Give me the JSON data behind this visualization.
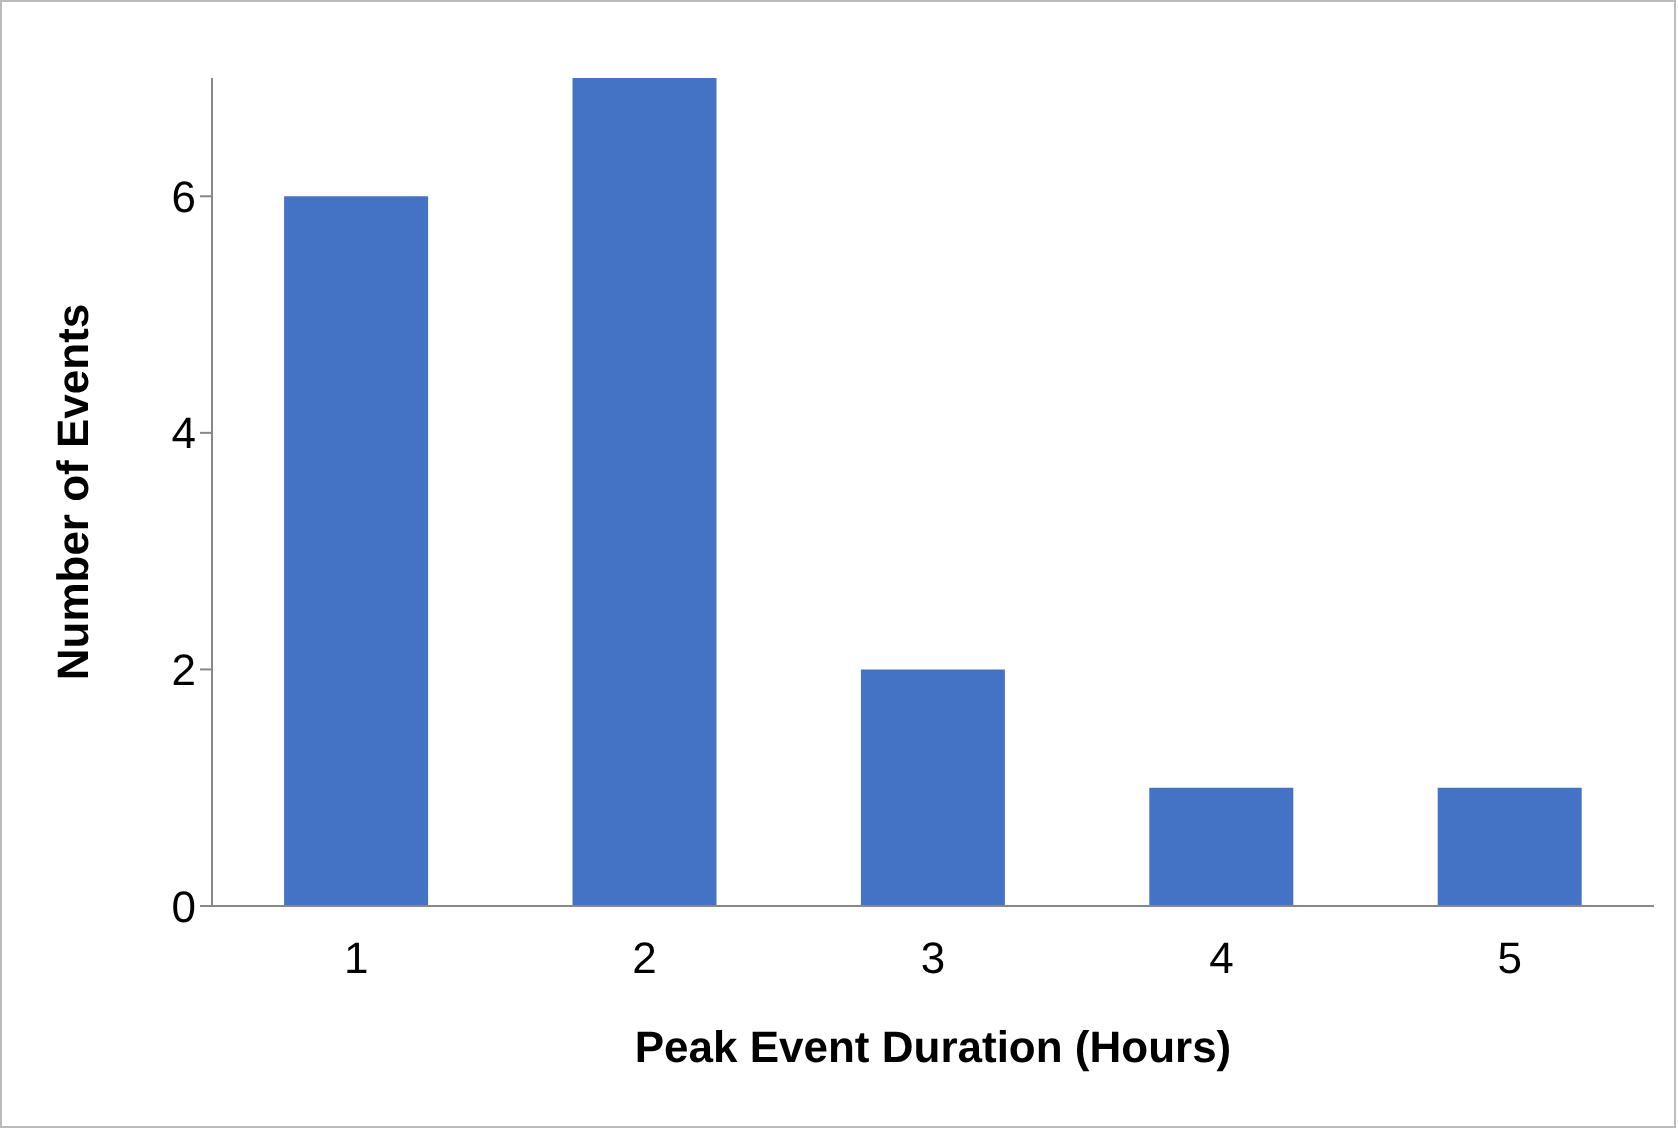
{
  "chart_data": {
    "type": "bar",
    "xlabel": "Peak Event Duration (Hours)",
    "ylabel": "Number of Events",
    "categories": [
      "1",
      "2",
      "3",
      "4",
      "5"
    ],
    "values": [
      6,
      7,
      2,
      1,
      1
    ],
    "color": "#4472c4",
    "ylim": [
      0,
      7
    ],
    "yticks": [
      0,
      2,
      4,
      6
    ],
    "grid": false,
    "legend": false
  }
}
